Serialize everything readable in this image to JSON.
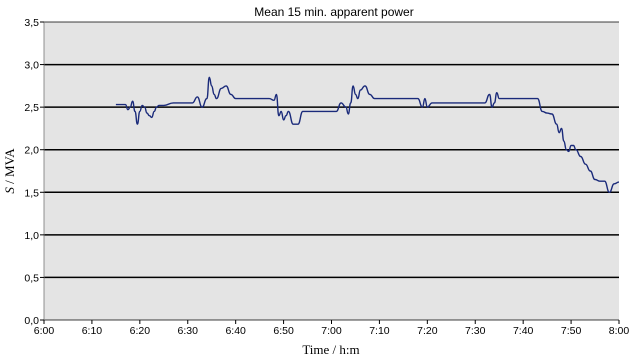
{
  "chart_data": {
    "type": "line",
    "title": "Mean 15 min. apparent power",
    "xlabel": "Time / h:m",
    "ylabel_symbol": "S",
    "ylabel_unit": " / MVA",
    "x_ticks": [
      "6:00",
      "6:10",
      "6:20",
      "6:30",
      "6:40",
      "6:50",
      "7:00",
      "7:10",
      "7:20",
      "7:30",
      "7:40",
      "7:50",
      "8:00"
    ],
    "y_ticks": [
      "0,0",
      "0,5",
      "1,0",
      "1,5",
      "2,0",
      "2,5",
      "3,0",
      "3,5"
    ],
    "xlim": [
      "6:00",
      "8:00"
    ],
    "ylim": [
      0,
      3.5
    ],
    "grid": "horizontal",
    "colors": {
      "line": "#1a2a7a",
      "plot_bg": "#e4e4e4",
      "grid": "#000000"
    },
    "series": [
      {
        "x": [
          "6:15",
          "6:17",
          "6:17.5",
          "6:18",
          "6:18.5",
          "6:19",
          "6:19.5",
          "6:20",
          "6:20.5",
          "6:21",
          "6:21.5",
          "6:22",
          "6:22.5",
          "6:23",
          "6:23.5",
          "6:24",
          "6:25",
          "6:27",
          "6:30",
          "6:31",
          "6:32",
          "6:33",
          "6:34",
          "6:34.5",
          "6:35",
          "6:35.5",
          "6:36",
          "6:37",
          "6:38",
          "6:39",
          "6:40",
          "6:41",
          "6:44",
          "6:47",
          "6:48",
          "6:48.5",
          "6:49",
          "6:49.5",
          "6:50",
          "6:50.5",
          "6:51",
          "6:52",
          "6:53",
          "6:54",
          "6:55",
          "6:58",
          "7:01",
          "7:02",
          "7:03",
          "7:03.5",
          "7:04",
          "7:04.5",
          "7:05",
          "7:05.5",
          "7:06",
          "7:07",
          "7:08",
          "7:09",
          "7:10",
          "7:11",
          "7:15",
          "7:18",
          "7:19",
          "7:19.5",
          "7:20",
          "7:21",
          "7:23",
          "7:26",
          "7:30",
          "7:32",
          "7:33",
          "7:33.5",
          "7:34",
          "7:34.5",
          "7:35",
          "7:35.5",
          "7:36",
          "7:37",
          "7:40",
          "7:43",
          "7:44",
          "7:45",
          "7:46",
          "7:47",
          "7:47.5",
          "7:48",
          "7:48.5",
          "7:49",
          "7:49.5",
          "7:50",
          "7:50.5",
          "7:51",
          "7:52",
          "7:53",
          "7:54",
          "7:55",
          "7:56",
          "7:57",
          "7:58",
          "7:59",
          "8:00"
        ],
        "y": [
          2.53,
          2.53,
          2.47,
          2.5,
          2.57,
          2.45,
          2.3,
          2.45,
          2.52,
          2.5,
          2.43,
          2.4,
          2.38,
          2.45,
          2.5,
          2.52,
          2.52,
          2.55,
          2.55,
          2.55,
          2.62,
          2.5,
          2.6,
          2.85,
          2.75,
          2.65,
          2.6,
          2.72,
          2.75,
          2.65,
          2.6,
          2.6,
          2.6,
          2.6,
          2.58,
          2.65,
          2.4,
          2.45,
          2.35,
          2.4,
          2.45,
          2.3,
          2.3,
          2.45,
          2.45,
          2.45,
          2.45,
          2.55,
          2.5,
          2.42,
          2.55,
          2.75,
          2.65,
          2.6,
          2.7,
          2.75,
          2.65,
          2.6,
          2.6,
          2.6,
          2.6,
          2.6,
          2.5,
          2.6,
          2.5,
          2.55,
          2.55,
          2.55,
          2.55,
          2.55,
          2.65,
          2.5,
          2.55,
          2.67,
          2.6,
          2.6,
          2.6,
          2.6,
          2.6,
          2.6,
          2.45,
          2.43,
          2.42,
          2.3,
          2.2,
          2.25,
          2.1,
          2.0,
          1.98,
          2.05,
          2.05,
          2.0,
          1.92,
          1.83,
          1.75,
          1.65,
          1.63,
          1.63,
          1.5,
          1.6,
          1.62
        ]
      }
    ]
  }
}
